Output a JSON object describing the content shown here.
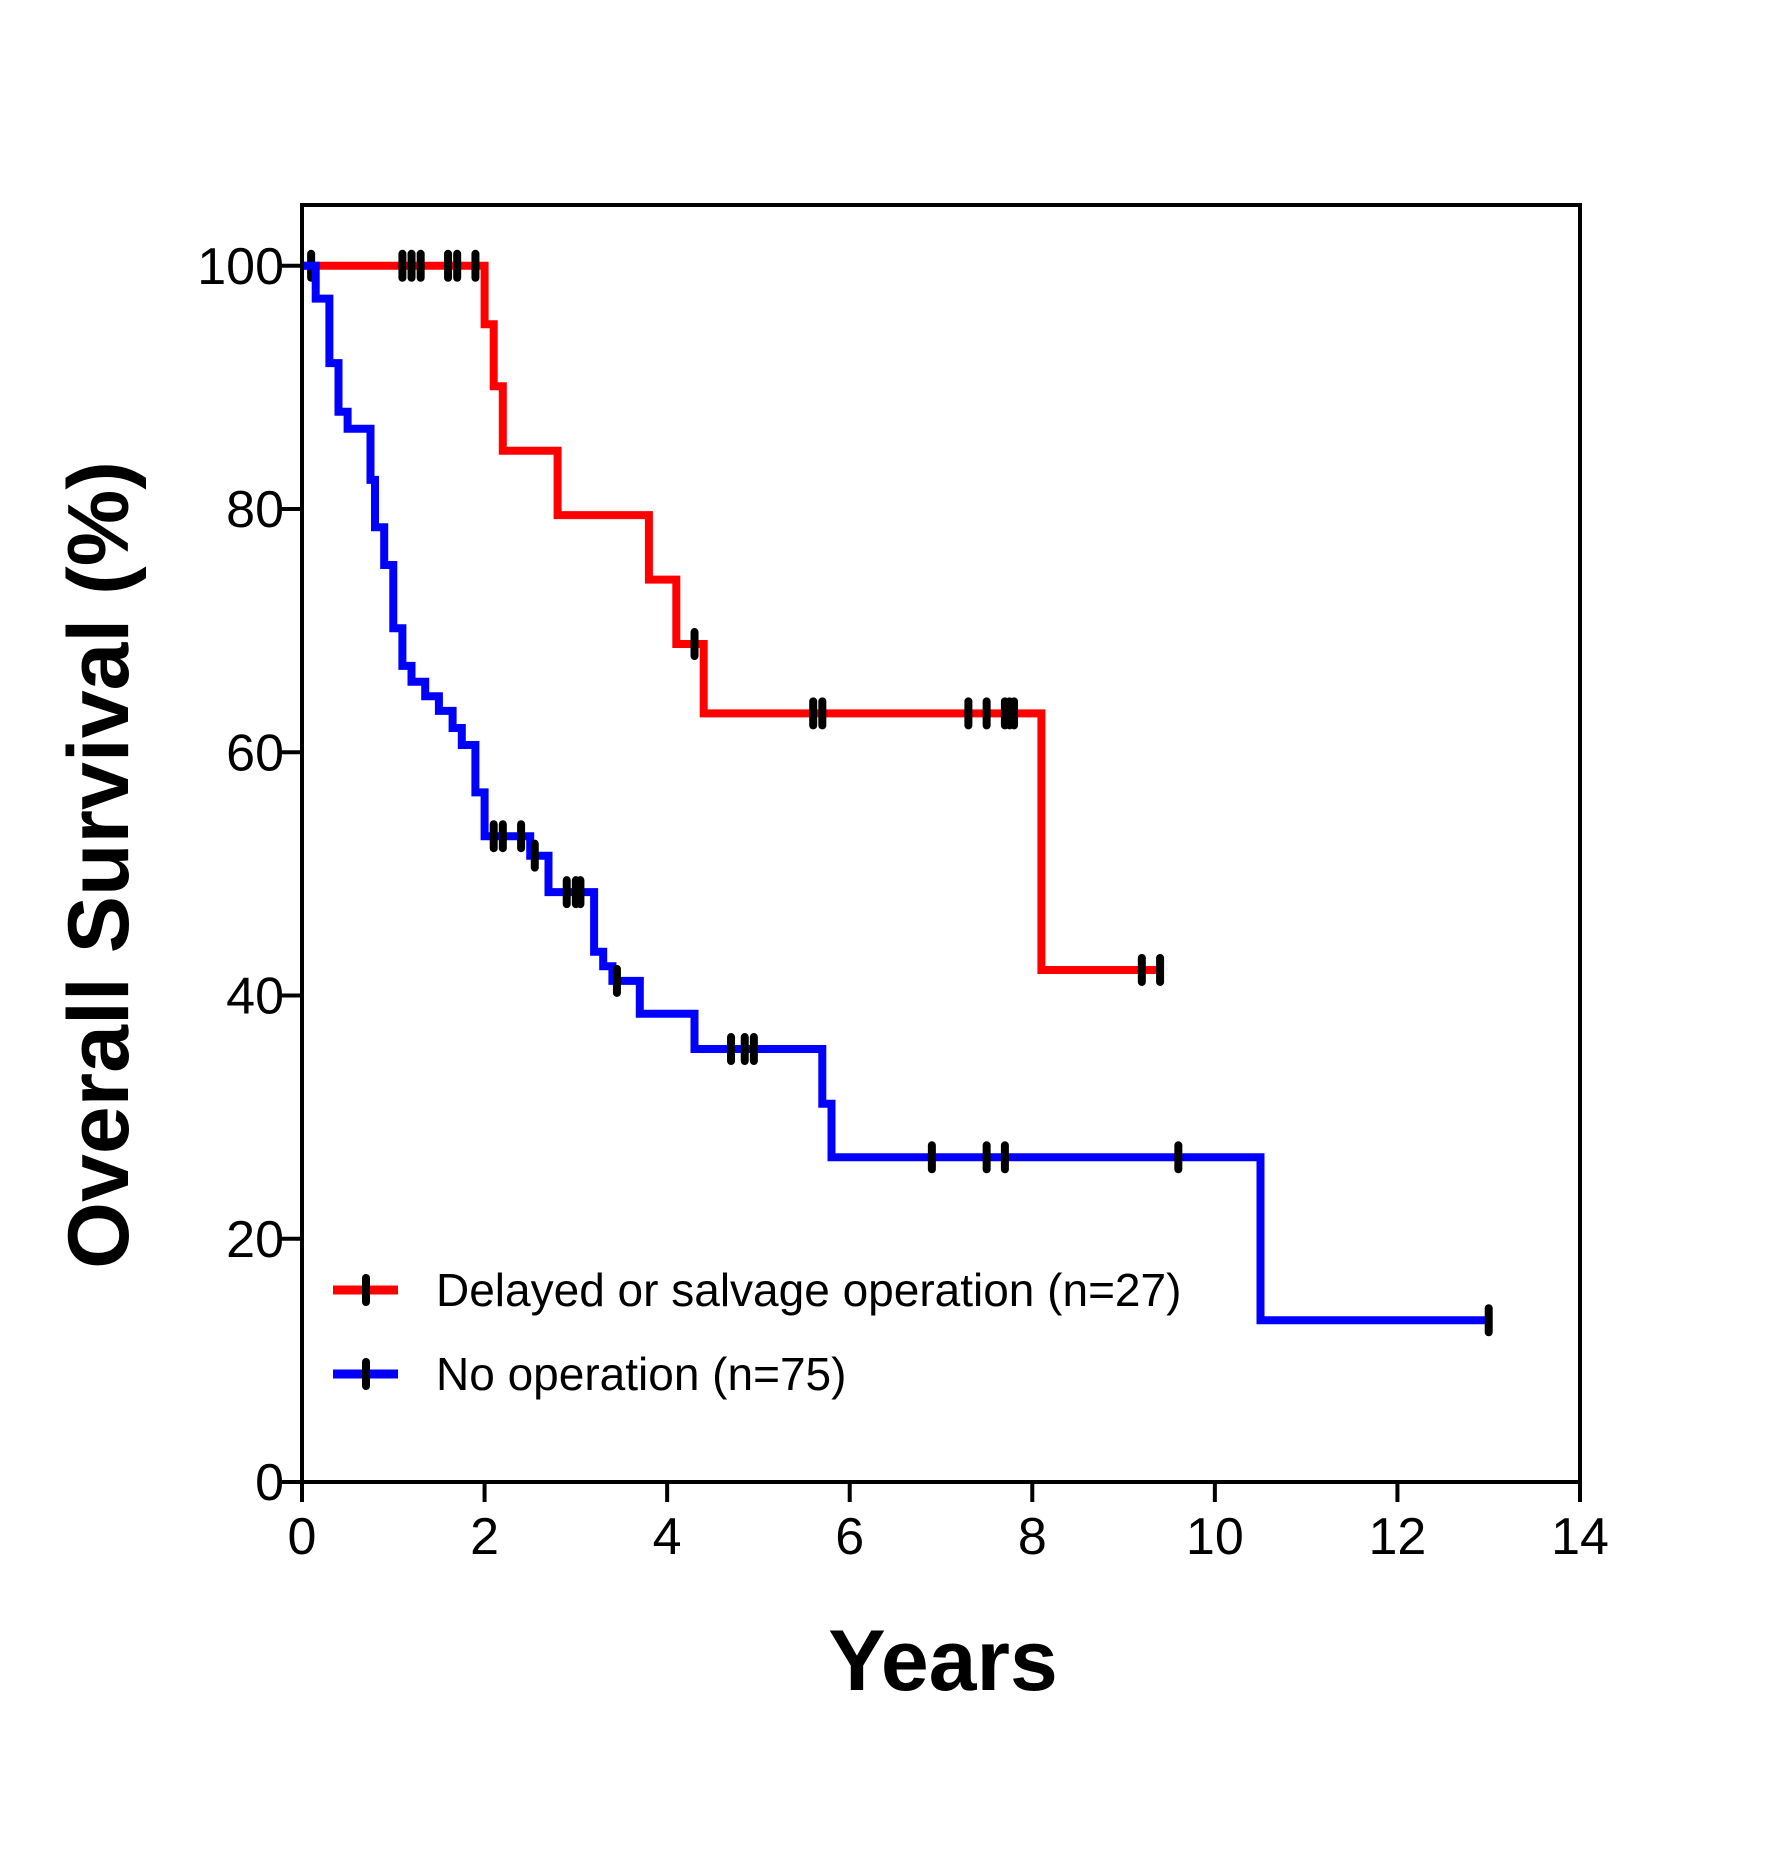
{
  "chart_data": {
    "type": "line",
    "subtype": "kaplan-meier-step",
    "xlabel": "Years",
    "ylabel": "Overall Survival (%)",
    "xlim": [
      0,
      14
    ],
    "ylim": [
      0,
      105
    ],
    "xticks": [
      0,
      2,
      4,
      6,
      8,
      10,
      12,
      14
    ],
    "yticks": [
      0,
      20,
      40,
      60,
      80,
      100
    ],
    "grid": false,
    "legend": {
      "position": "bottom-left"
    },
    "series": [
      {
        "name": "Delayed or salvage operation (n=27)",
        "color": "#ff0000",
        "steps": [
          [
            0,
            100
          ],
          [
            2.0,
            95.2
          ],
          [
            2.1,
            90.1
          ],
          [
            2.2,
            84.8
          ],
          [
            2.8,
            79.5
          ],
          [
            3.8,
            74.2
          ],
          [
            4.1,
            68.9
          ],
          [
            4.4,
            63.2
          ],
          [
            8.1,
            42.1
          ]
        ],
        "end_x": 9.4,
        "censored": [
          [
            0.1,
            100
          ],
          [
            1.1,
            100
          ],
          [
            1.2,
            100
          ],
          [
            1.3,
            100
          ],
          [
            1.6,
            100
          ],
          [
            1.7,
            100
          ],
          [
            1.9,
            100
          ],
          [
            4.3,
            68.9
          ],
          [
            5.6,
            63.2
          ],
          [
            5.7,
            63.2
          ],
          [
            7.3,
            63.2
          ],
          [
            7.5,
            63.2
          ],
          [
            7.7,
            63.2
          ],
          [
            7.75,
            63.2
          ],
          [
            7.8,
            63.2
          ],
          [
            9.2,
            42.1
          ],
          [
            9.4,
            42.1
          ]
        ]
      },
      {
        "name": "No operation (n=75)",
        "color": "#0000ff",
        "steps": [
          [
            0,
            100
          ],
          [
            0.15,
            97.3
          ],
          [
            0.3,
            92.0
          ],
          [
            0.4,
            88.0
          ],
          [
            0.5,
            86.6
          ],
          [
            0.75,
            82.4
          ],
          [
            0.8,
            78.5
          ],
          [
            0.9,
            75.4
          ],
          [
            1.0,
            70.2
          ],
          [
            1.1,
            67.1
          ],
          [
            1.2,
            65.8
          ],
          [
            1.35,
            64.6
          ],
          [
            1.5,
            63.4
          ],
          [
            1.65,
            62.0
          ],
          [
            1.75,
            60.6
          ],
          [
            1.9,
            56.7
          ],
          [
            2.0,
            53.1
          ],
          [
            2.5,
            51.5
          ],
          [
            2.7,
            48.5
          ],
          [
            3.2,
            43.6
          ],
          [
            3.3,
            42.4
          ],
          [
            3.4,
            41.2
          ],
          [
            3.7,
            38.5
          ],
          [
            4.3,
            35.6
          ],
          [
            5.7,
            31.1
          ],
          [
            5.8,
            26.7
          ],
          [
            10.5,
            13.3
          ]
        ],
        "end_x": 13.0,
        "censored": [
          [
            2.1,
            53.1
          ],
          [
            2.2,
            53.1
          ],
          [
            2.4,
            53.1
          ],
          [
            2.55,
            51.5
          ],
          [
            2.9,
            48.5
          ],
          [
            3.0,
            48.5
          ],
          [
            3.05,
            48.5
          ],
          [
            3.45,
            41.2
          ],
          [
            4.7,
            35.6
          ],
          [
            4.85,
            35.6
          ],
          [
            4.95,
            35.6
          ],
          [
            6.9,
            26.7
          ],
          [
            7.5,
            26.7
          ],
          [
            7.7,
            26.7
          ],
          [
            9.6,
            26.7
          ],
          [
            13.0,
            13.3
          ]
        ]
      }
    ]
  }
}
